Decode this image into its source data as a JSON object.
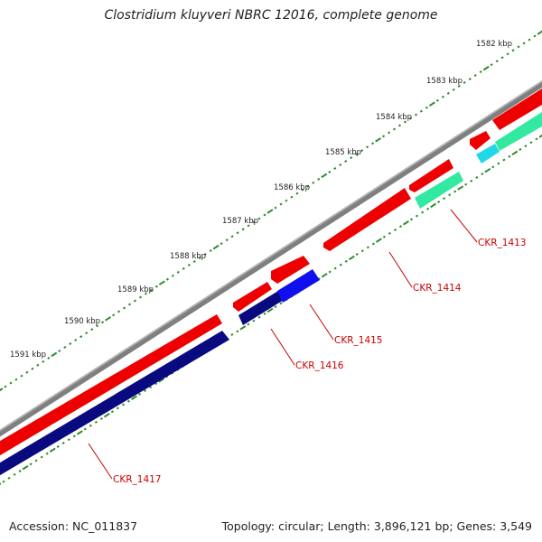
{
  "title": "Clostridium kluyveri NBRC 12016, complete genome",
  "footer": {
    "accession": "Accession: NC_011837",
    "stats": "Topology: circular; Length: 3,896,121 bp; Genes: 3,549"
  },
  "colors": {
    "backbone": "#7f7f7f",
    "forward_gene": "#ee0000",
    "reverse_gene": "#0a0a80",
    "highlight_gene": "#1010ee",
    "cyan_gene": "#22d8e8",
    "green_gene": "#33e8a0",
    "ruler": "#2e8b2e",
    "label": "#cc0000"
  },
  "scale_labels": [
    "1582 kbp",
    "1583 kbp",
    "1584 kbp",
    "1585 kbp",
    "1586 kbp",
    "1587 kbp",
    "1588 kbp",
    "1589 kbp",
    "1590 kbp",
    "1591 kbp"
  ],
  "gene_labels": [
    "CKR_1413",
    "CKR_1414",
    "CKR_1415",
    "CKR_1416",
    "CKR_1417"
  ]
}
